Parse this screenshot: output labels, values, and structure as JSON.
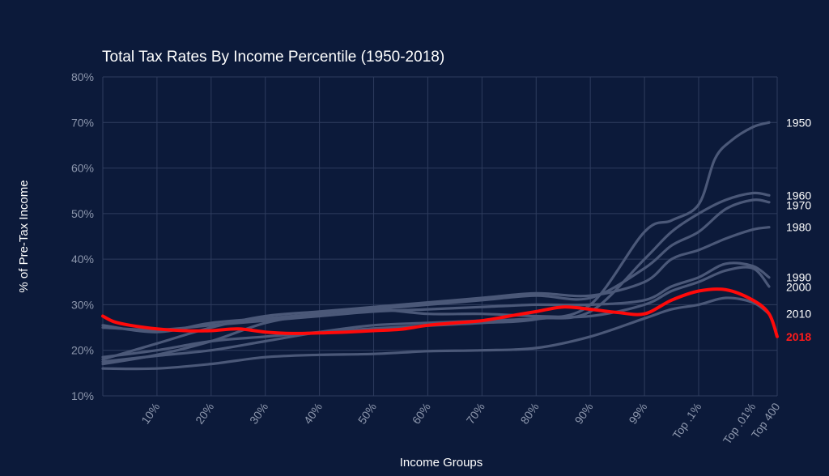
{
  "chart_data": {
    "type": "line",
    "title": "Total Tax Rates By Income Percentile (1950-2018)",
    "xlabel": "Income Groups",
    "ylabel": "% of Pre-Tax Income",
    "ylim": [
      10,
      80
    ],
    "y_ticks": [
      {
        "value": 80,
        "label": "80%"
      },
      {
        "value": 70,
        "label": "70%"
      },
      {
        "value": 60,
        "label": "60%"
      },
      {
        "value": 50,
        "label": "50%"
      },
      {
        "value": 40,
        "label": "40%"
      },
      {
        "value": 30,
        "label": "30%"
      },
      {
        "value": 20,
        "label": "20%"
      },
      {
        "value": 10,
        "label": "10%"
      }
    ],
    "x_ticks": [
      "10%",
      "20%",
      "30%",
      "40%",
      "50%",
      "60%",
      "70%",
      "80%",
      "90%",
      "99%",
      "Top .1%",
      "Top .01%",
      "Top 400"
    ],
    "grid": true,
    "highlight_color": "#ff0a0a",
    "muted_color": "#4b5878",
    "series": [
      {
        "name": "1950",
        "highlight": false,
        "points": [
          [
            0,
            18.5
          ],
          [
            1,
            20
          ],
          [
            2,
            22
          ],
          [
            3,
            23
          ],
          [
            4,
            24
          ],
          [
            5,
            24.8
          ],
          [
            6,
            25.4
          ],
          [
            7,
            26
          ],
          [
            8,
            26.8
          ],
          [
            9,
            30
          ],
          [
            10,
            46
          ],
          [
            10.5,
            48.5
          ],
          [
            11,
            52
          ],
          [
            11.3,
            62
          ],
          [
            11.6,
            66
          ],
          [
            12,
            69
          ],
          [
            12.3,
            70
          ]
        ]
      },
      {
        "name": "1960",
        "highlight": false,
        "points": [
          [
            0,
            17.5
          ],
          [
            1,
            18.8
          ],
          [
            2,
            20
          ],
          [
            3,
            22
          ],
          [
            4,
            24
          ],
          [
            5,
            25.5
          ],
          [
            6,
            26
          ],
          [
            7,
            26.5
          ],
          [
            8,
            27
          ],
          [
            9,
            28.5
          ],
          [
            10,
            40
          ],
          [
            10.5,
            46
          ],
          [
            11,
            50
          ],
          [
            11.5,
            53
          ],
          [
            12,
            54.5
          ],
          [
            12.3,
            54
          ]
        ]
      },
      {
        "name": "1970",
        "highlight": false,
        "points": [
          [
            0,
            17
          ],
          [
            1,
            19
          ],
          [
            2,
            22
          ],
          [
            3,
            26
          ],
          [
            4,
            28
          ],
          [
            5,
            29
          ],
          [
            6,
            30
          ],
          [
            7,
            31
          ],
          [
            8,
            32
          ],
          [
            9,
            31.5
          ],
          [
            10,
            38
          ],
          [
            10.5,
            43
          ],
          [
            11,
            46
          ],
          [
            11.5,
            51
          ],
          [
            12,
            53
          ],
          [
            12.3,
            52.5
          ]
        ]
      },
      {
        "name": "1980",
        "highlight": false,
        "points": [
          [
            0,
            18
          ],
          [
            1,
            21.5
          ],
          [
            2,
            25
          ],
          [
            3,
            27.5
          ],
          [
            4,
            28.5
          ],
          [
            5,
            29.5
          ],
          [
            6,
            30.5
          ],
          [
            7,
            31.5
          ],
          [
            8,
            32.5
          ],
          [
            9,
            32
          ],
          [
            10,
            35
          ],
          [
            10.5,
            40
          ],
          [
            11,
            42
          ],
          [
            11.5,
            44.5
          ],
          [
            12,
            46.5
          ],
          [
            12.3,
            47
          ]
        ]
      },
      {
        "name": "1990",
        "highlight": false,
        "points": [
          [
            0,
            25
          ],
          [
            1,
            24.5
          ],
          [
            2,
            25.5
          ],
          [
            3,
            26.5
          ],
          [
            4,
            27.5
          ],
          [
            5,
            28.5
          ],
          [
            6,
            29
          ],
          [
            7,
            29.5
          ],
          [
            8,
            30
          ],
          [
            9,
            30
          ],
          [
            10,
            31
          ],
          [
            10.5,
            34
          ],
          [
            11,
            36
          ],
          [
            11.5,
            39
          ],
          [
            12,
            38.5
          ],
          [
            12.3,
            36
          ]
        ]
      },
      {
        "name": "2000",
        "highlight": false,
        "points": [
          [
            0,
            25.5
          ],
          [
            1,
            24
          ],
          [
            2,
            26
          ],
          [
            3,
            27
          ],
          [
            4,
            28
          ],
          [
            5,
            29
          ],
          [
            6,
            28
          ],
          [
            7,
            28
          ],
          [
            8,
            27.5
          ],
          [
            9,
            27.5
          ],
          [
            10,
            30
          ],
          [
            10.5,
            33
          ],
          [
            11,
            35
          ],
          [
            11.5,
            37.5
          ],
          [
            12,
            38
          ],
          [
            12.3,
            34
          ]
        ]
      },
      {
        "name": "2010",
        "highlight": false,
        "points": [
          [
            0,
            16
          ],
          [
            1,
            16
          ],
          [
            2,
            17
          ],
          [
            3,
            18.5
          ],
          [
            4,
            19
          ],
          [
            5,
            19.2
          ],
          [
            6,
            19.8
          ],
          [
            7,
            20
          ],
          [
            8,
            20.5
          ],
          [
            9,
            23
          ],
          [
            10,
            27
          ],
          [
            10.5,
            29
          ],
          [
            11,
            30
          ],
          [
            11.5,
            31.5
          ],
          [
            12,
            30.5
          ],
          [
            12.3,
            28
          ]
        ]
      },
      {
        "name": "2018",
        "highlight": true,
        "points": [
          [
            0,
            27.5
          ],
          [
            0.2,
            26.3
          ],
          [
            0.5,
            25.5
          ],
          [
            1,
            24.7
          ],
          [
            1.5,
            24.3
          ],
          [
            2,
            24.3
          ],
          [
            2.5,
            24.7
          ],
          [
            3,
            24
          ],
          [
            3.5,
            23.7
          ],
          [
            4,
            23.8
          ],
          [
            4.5,
            24
          ],
          [
            5,
            24.3
          ],
          [
            5.5,
            24.6
          ],
          [
            6,
            25.5
          ],
          [
            6.5,
            26
          ],
          [
            7,
            26.5
          ],
          [
            7.5,
            27.5
          ],
          [
            8,
            28.5
          ],
          [
            8.5,
            29.5
          ],
          [
            9,
            29
          ],
          [
            9.5,
            28.3
          ],
          [
            10,
            28
          ],
          [
            10.5,
            31
          ],
          [
            11,
            33
          ],
          [
            11.5,
            33.3
          ],
          [
            12,
            31
          ],
          [
            12.3,
            28
          ],
          [
            12.45,
            23
          ]
        ]
      }
    ]
  }
}
